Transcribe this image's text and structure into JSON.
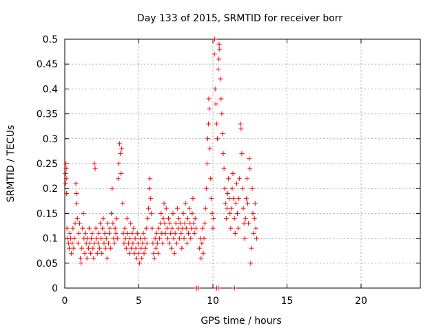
{
  "chart_data": {
    "type": "scatter",
    "title": "Day 133 of 2015, SRMTID for receiver borr",
    "xlabel": "GPS time / hours",
    "ylabel": "SRMTID / TECUs",
    "xlim": [
      0,
      24
    ],
    "ylim": [
      0,
      0.5
    ],
    "xticks": [
      0,
      5,
      10,
      15,
      20
    ],
    "yticks": [
      0,
      0.05,
      0.1,
      0.15,
      0.2,
      0.25,
      0.3,
      0.35,
      0.4,
      0.45,
      0.5
    ],
    "xtick_labels": [
      "0",
      "5",
      "10",
      "15",
      "20"
    ],
    "ytick_labels": [
      "0",
      "0.05",
      "0.1",
      "0.15",
      "0.2",
      "0.25",
      "0.3",
      "0.35",
      "0.4",
      "0.45",
      "0.5"
    ],
    "grid": true,
    "series": [
      {
        "marker": "+",
        "color": "#ff0000",
        "points": [
          [
            0.05,
            0.21
          ],
          [
            0.05,
            0.23
          ],
          [
            0.08,
            0.25
          ],
          [
            0.1,
            0.24
          ],
          [
            0.1,
            0.22
          ],
          [
            0.12,
            0.19
          ],
          [
            0.15,
            0.12
          ],
          [
            0.2,
            0.1
          ],
          [
            0.25,
            0.09
          ],
          [
            0.3,
            0.08
          ],
          [
            0.35,
            0.11
          ],
          [
            0.4,
            0.1
          ],
          [
            0.45,
            0.07
          ],
          [
            0.5,
            0.09
          ],
          [
            0.55,
            0.12
          ],
          [
            0.6,
            0.08
          ],
          [
            0.65,
            0.1
          ],
          [
            0.7,
            0.13
          ],
          [
            0.75,
            0.21
          ],
          [
            0.78,
            0.19
          ],
          [
            0.8,
            0.17
          ],
          [
            0.85,
            0.14
          ],
          [
            0.9,
            0.09
          ],
          [
            0.95,
            0.11
          ],
          [
            1.0,
            0.13
          ],
          [
            1.05,
            0.06
          ],
          [
            1.1,
            0.05
          ],
          [
            1.15,
            0.08
          ],
          [
            1.2,
            0.12
          ],
          [
            1.25,
            0.15
          ],
          [
            1.3,
            0.1
          ],
          [
            1.35,
            0.07
          ],
          [
            1.4,
            0.11
          ],
          [
            1.45,
            0.09
          ],
          [
            1.5,
            0.06
          ],
          [
            1.55,
            0.1
          ],
          [
            1.6,
            0.08
          ],
          [
            1.65,
            0.12
          ],
          [
            1.7,
            0.09
          ],
          [
            1.75,
            0.07
          ],
          [
            1.8,
            0.1
          ],
          [
            1.85,
            0.11
          ],
          [
            1.9,
            0.08
          ],
          [
            1.95,
            0.06
          ],
          [
            2.0,
            0.09
          ],
          [
            2.0,
            0.25
          ],
          [
            2.05,
            0.24
          ],
          [
            2.1,
            0.12
          ],
          [
            2.15,
            0.1
          ],
          [
            2.2,
            0.07
          ],
          [
            2.25,
            0.09
          ],
          [
            2.3,
            0.11
          ],
          [
            2.35,
            0.08
          ],
          [
            2.4,
            0.13
          ],
          [
            2.45,
            0.1
          ],
          [
            2.5,
            0.07
          ],
          [
            2.55,
            0.12
          ],
          [
            2.6,
            0.14
          ],
          [
            2.65,
            0.09
          ],
          [
            2.7,
            0.11
          ],
          [
            2.75,
            0.08
          ],
          [
            2.8,
            0.1
          ],
          [
            2.85,
            0.06
          ],
          [
            2.9,
            0.13
          ],
          [
            2.95,
            0.09
          ],
          [
            3.0,
            0.11
          ],
          [
            3.05,
            0.12
          ],
          [
            3.1,
            0.08
          ],
          [
            3.15,
            0.15
          ],
          [
            3.2,
            0.2
          ],
          [
            3.25,
            0.13
          ],
          [
            3.3,
            0.1
          ],
          [
            3.35,
            0.09
          ],
          [
            3.4,
            0.12
          ],
          [
            3.45,
            0.11
          ],
          [
            3.5,
            0.14
          ],
          [
            3.55,
            0.1
          ],
          [
            3.6,
            0.22
          ],
          [
            3.65,
            0.25
          ],
          [
            3.7,
            0.29
          ],
          [
            3.75,
            0.27
          ],
          [
            3.8,
            0.23
          ],
          [
            3.85,
            0.28
          ],
          [
            3.9,
            0.17
          ],
          [
            3.95,
            0.11
          ],
          [
            4.0,
            0.09
          ],
          [
            4.05,
            0.12
          ],
          [
            4.1,
            0.1
          ],
          [
            4.15,
            0.08
          ],
          [
            4.2,
            0.14
          ],
          [
            4.25,
            0.11
          ],
          [
            4.3,
            0.09
          ],
          [
            4.35,
            0.07
          ],
          [
            4.4,
            0.1
          ],
          [
            4.45,
            0.13
          ],
          [
            4.5,
            0.08
          ],
          [
            4.55,
            0.11
          ],
          [
            4.6,
            0.09
          ],
          [
            4.65,
            0.12
          ],
          [
            4.7,
            0.07
          ],
          [
            4.75,
            0.1
          ],
          [
            4.8,
            0.08
          ],
          [
            4.85,
            0.06
          ],
          [
            4.9,
            0.11
          ],
          [
            4.95,
            0.09
          ],
          [
            5.0,
            0.07
          ],
          [
            5.05,
            0.05
          ],
          [
            5.1,
            0.1
          ],
          [
            5.15,
            0.08
          ],
          [
            5.2,
            0.06
          ],
          [
            5.25,
            0.09
          ],
          [
            5.3,
            0.11
          ],
          [
            5.35,
            0.07
          ],
          [
            5.4,
            0.1
          ],
          [
            5.45,
            0.08
          ],
          [
            5.5,
            0.12
          ],
          [
            5.55,
            0.09
          ],
          [
            5.6,
            0.14
          ],
          [
            5.65,
            0.16
          ],
          [
            5.7,
            0.2
          ],
          [
            5.75,
            0.22
          ],
          [
            5.8,
            0.18
          ],
          [
            5.85,
            0.15
          ],
          [
            5.9,
            0.12
          ],
          [
            5.95,
            0.09
          ],
          [
            6.0,
            0.07
          ],
          [
            6.05,
            0.06
          ],
          [
            6.1,
            0.1
          ],
          [
            6.15,
            0.08
          ],
          [
            6.2,
            0.11
          ],
          [
            6.25,
            0.09
          ],
          [
            6.3,
            0.07
          ],
          [
            6.35,
            0.12
          ],
          [
            6.4,
            0.1
          ],
          [
            6.45,
            0.13
          ],
          [
            6.5,
            0.15
          ],
          [
            6.55,
            0.11
          ],
          [
            6.6,
            0.09
          ],
          [
            6.65,
            0.14
          ],
          [
            6.7,
            0.17
          ],
          [
            6.75,
            0.13
          ],
          [
            6.8,
            0.11
          ],
          [
            6.85,
            0.16
          ],
          [
            6.9,
            0.12
          ],
          [
            6.95,
            0.1
          ],
          [
            7.0,
            0.14
          ],
          [
            7.05,
            0.09
          ],
          [
            7.1,
            0.13
          ],
          [
            7.15,
            0.11
          ],
          [
            7.2,
            0.08
          ],
          [
            7.25,
            0.12
          ],
          [
            7.3,
            0.15
          ],
          [
            7.35,
            0.1
          ],
          [
            7.4,
            0.07
          ],
          [
            7.45,
            0.11
          ],
          [
            7.5,
            0.13
          ],
          [
            7.55,
            0.09
          ],
          [
            7.6,
            0.16
          ],
          [
            7.65,
            0.12
          ],
          [
            7.7,
            0.14
          ],
          [
            7.75,
            0.1
          ],
          [
            7.8,
            0.13
          ],
          [
            7.85,
            0.11
          ],
          [
            7.9,
            0.08
          ],
          [
            7.95,
            0.12
          ],
          [
            8.0,
            0.15
          ],
          [
            8.05,
            0.1
          ],
          [
            8.1,
            0.13
          ],
          [
            8.15,
            0.17
          ],
          [
            8.2,
            0.12
          ],
          [
            8.25,
            0.09
          ],
          [
            8.3,
            0.14
          ],
          [
            8.35,
            0.11
          ],
          [
            8.4,
            0.16
          ],
          [
            8.45,
            0.13
          ],
          [
            8.5,
            0.1
          ],
          [
            8.55,
            0.12
          ],
          [
            8.6,
            0.15
          ],
          [
            8.65,
            0.18
          ],
          [
            8.7,
            0.13
          ],
          [
            8.75,
            0.11
          ],
          [
            8.8,
            0.14
          ],
          [
            8.85,
            0.12
          ],
          [
            8.9,
            0.0
          ],
          [
            9.0,
            0.0
          ],
          [
            9.1,
            0.08
          ],
          [
            9.15,
            0.1
          ],
          [
            9.2,
            0.06
          ],
          [
            9.25,
            0.09
          ],
          [
            9.3,
            0.12
          ],
          [
            9.35,
            0.07
          ],
          [
            9.4,
            0.1
          ],
          [
            9.45,
            0.13
          ],
          [
            9.5,
            0.16
          ],
          [
            9.55,
            0.2
          ],
          [
            9.6,
            0.25
          ],
          [
            9.65,
            0.3
          ],
          [
            9.7,
            0.33
          ],
          [
            9.72,
            0.38
          ],
          [
            9.75,
            0.36
          ],
          [
            9.8,
            0.28
          ],
          [
            9.85,
            0.22
          ],
          [
            9.9,
            0.18
          ],
          [
            9.95,
            0.15
          ],
          [
            10.0,
            0.12
          ],
          [
            10.05,
            0.14
          ],
          [
            10.1,
            0.47
          ],
          [
            10.12,
            0.5
          ],
          [
            10.15,
            0.4
          ],
          [
            10.2,
            0.37
          ],
          [
            10.25,
            0.33
          ],
          [
            10.3,
            0.3
          ],
          [
            10.35,
            0.44
          ],
          [
            10.4,
            0.46
          ],
          [
            10.42,
            0.49
          ],
          [
            10.45,
            0.48
          ],
          [
            10.5,
            0.42
          ],
          [
            10.55,
            0.38
          ],
          [
            10.6,
            0.35
          ],
          [
            10.65,
            0.31
          ],
          [
            10.7,
            0.27
          ],
          [
            10.75,
            0.24
          ],
          [
            10.8,
            0.2
          ],
          [
            10.85,
            0.17
          ],
          [
            10.9,
            0.14
          ],
          [
            10.95,
            0.16
          ],
          [
            11.0,
            0.19
          ],
          [
            11.05,
            0.22
          ],
          [
            11.1,
            0.18
          ],
          [
            11.15,
            0.15
          ],
          [
            11.2,
            0.12
          ],
          [
            11.25,
            0.16
          ],
          [
            11.3,
            0.2
          ],
          [
            11.35,
            0.23
          ],
          [
            11.4,
            0.18
          ],
          [
            11.45,
            0.14
          ],
          [
            11.5,
            0.11
          ],
          [
            11.55,
            0.17
          ],
          [
            11.6,
            0.21
          ],
          [
            11.65,
            0.15
          ],
          [
            11.7,
            0.12
          ],
          [
            11.75,
            0.18
          ],
          [
            11.8,
            0.22
          ],
          [
            11.85,
            0.33
          ],
          [
            11.9,
            0.32
          ],
          [
            11.95,
            0.27
          ],
          [
            12.0,
            0.2
          ],
          [
            12.05,
            0.16
          ],
          [
            12.1,
            0.13
          ],
          [
            12.15,
            0.1
          ],
          [
            12.2,
            0.14
          ],
          [
            12.25,
            0.18
          ],
          [
            12.3,
            0.22
          ],
          [
            12.35,
            0.17
          ],
          [
            12.4,
            0.13
          ],
          [
            12.45,
            0.26
          ],
          [
            12.5,
            0.24
          ],
          [
            12.55,
            0.05
          ],
          [
            12.6,
            0.08
          ],
          [
            12.65,
            0.2
          ],
          [
            12.7,
            0.15
          ],
          [
            12.75,
            0.11
          ],
          [
            12.8,
            0.14
          ],
          [
            12.85,
            0.17
          ],
          [
            12.9,
            0.12
          ],
          [
            12.95,
            0.1
          ],
          [
            10.25,
            0.0
          ],
          [
            10.35,
            0.0
          ],
          [
            11.45,
            0.0
          ]
        ]
      }
    ]
  }
}
